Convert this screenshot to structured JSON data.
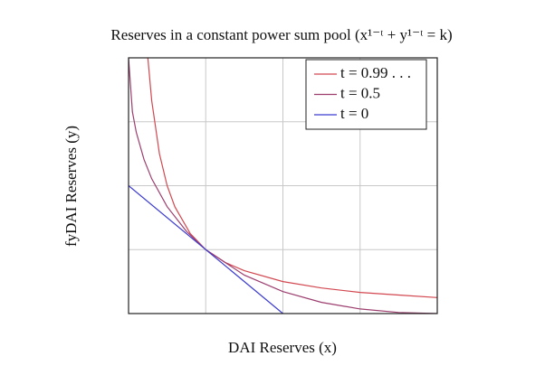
{
  "chart_data": {
    "type": "line",
    "title": "Reserves in a constant power sum pool (x¹⁻ᵗ + y¹⁻ᵗ = k)",
    "x_label": "DAI Reserves (x)",
    "y_label": "fyDAI Reserves (y)",
    "xlim": [
      0,
      4
    ],
    "ylim": [
      0,
      4
    ],
    "xticks": [
      0,
      1,
      2,
      3,
      4
    ],
    "yticks": [
      0,
      1,
      2,
      3,
      4
    ],
    "grid": true,
    "tick_labels": false,
    "legend_position": "upper-right",
    "series": [
      {
        "name": "t = 0.99 . . .",
        "color": "#d2474f",
        "x": [
          0.25,
          0.3,
          0.4,
          0.5,
          0.6,
          0.8,
          1,
          1.25,
          1.5,
          2,
          2.5,
          3,
          3.5,
          4
        ],
        "values": [
          4,
          3.33,
          2.5,
          2,
          1.67,
          1.25,
          1,
          0.8,
          0.67,
          0.5,
          0.4,
          0.33,
          0.29,
          0.25
        ]
      },
      {
        "name": "t = 0.5",
        "color": "#9c3d6e",
        "x": [
          0,
          0.05,
          0.1,
          0.2,
          0.3,
          0.5,
          0.75,
          1,
          1.5,
          2,
          2.5,
          3,
          3.5,
          4
        ],
        "values": [
          4,
          3.155,
          2.835,
          2.411,
          2.109,
          1.672,
          1.286,
          1,
          0.601,
          0.343,
          0.175,
          0.072,
          0.017,
          0
        ]
      },
      {
        "name": "t = 0",
        "color": "#3a3ad0",
        "x": [
          0,
          2
        ],
        "values": [
          2,
          0
        ]
      }
    ]
  }
}
